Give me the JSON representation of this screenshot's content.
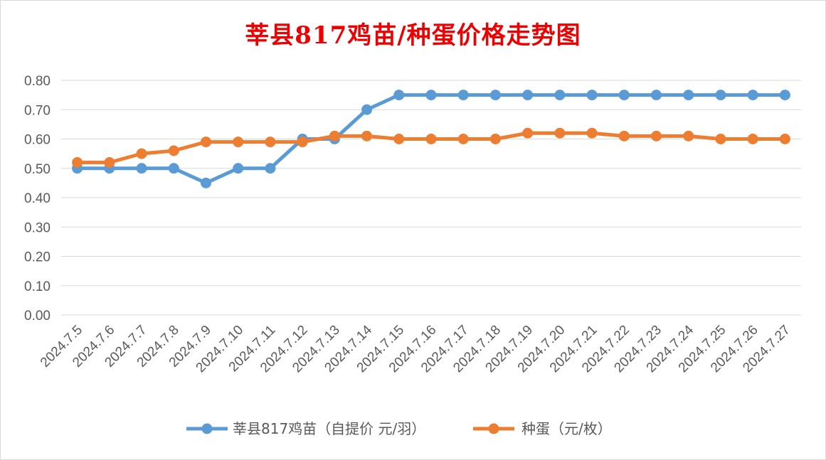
{
  "chart_data": {
    "type": "line",
    "title": "莘县817鸡苗/种蛋价格走势图",
    "xlabel": "",
    "ylabel": "",
    "ylim": [
      0,
      0.8
    ],
    "yticks": [
      "0.00",
      "0.10",
      "0.20",
      "0.30",
      "0.40",
      "0.50",
      "0.60",
      "0.70",
      "0.80"
    ],
    "grid": "horizontal",
    "legend_position": "bottom",
    "categories": [
      "2024.7.5",
      "2024.7.6",
      "2024.7.7",
      "2024.7.8",
      "2024.7.9",
      "2024.7.10",
      "2024.7.11",
      "2024.7.12",
      "2024.7.13",
      "2024.7.14",
      "2024.7.15",
      "2024.7.16",
      "2024.7.17",
      "2024.7.18",
      "2024.7.19",
      "2024.7.20",
      "2024.7.21",
      "2024.7.22",
      "2024.7.23",
      "2024.7.24",
      "2024.7.25",
      "2024.7.26",
      "2024.7.27"
    ],
    "series": [
      {
        "name": "莘县817鸡苗（自提价 元/羽）",
        "color": "#5b9bd5",
        "values": [
          0.5,
          0.5,
          0.5,
          0.5,
          0.45,
          0.5,
          0.5,
          0.6,
          0.6,
          0.7,
          0.75,
          0.75,
          0.75,
          0.75,
          0.75,
          0.75,
          0.75,
          0.75,
          0.75,
          0.75,
          0.75,
          0.75,
          0.75
        ]
      },
      {
        "name": "种蛋（元/枚）",
        "color": "#ed7d31",
        "values": [
          0.52,
          0.52,
          0.55,
          0.56,
          0.59,
          0.59,
          0.59,
          0.59,
          0.61,
          0.61,
          0.6,
          0.6,
          0.6,
          0.6,
          0.62,
          0.62,
          0.62,
          0.61,
          0.61,
          0.61,
          0.6,
          0.6,
          0.6
        ]
      }
    ]
  },
  "colors": {
    "title": "#ee0000",
    "grid": "#d9d9d9",
    "tick_text": "#595959"
  }
}
